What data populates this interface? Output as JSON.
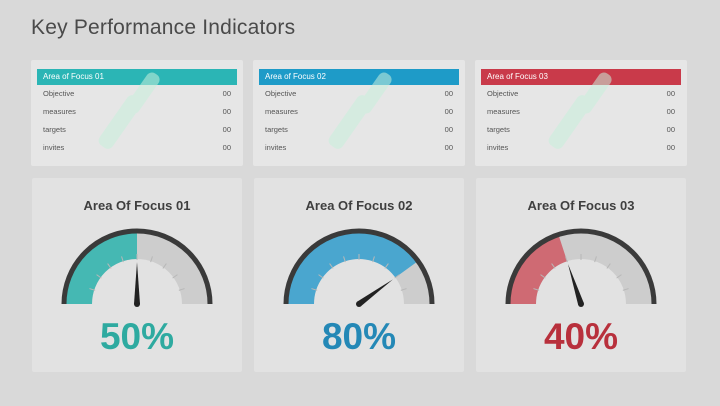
{
  "page": {
    "title": "Key Performance Indicators"
  },
  "tables": [
    {
      "header": "Area of Focus 01",
      "color": "#2bb5b5",
      "rows": [
        {
          "label": "Objective",
          "value": "00"
        },
        {
          "label": "measures",
          "value": "00"
        },
        {
          "label": "targets",
          "value": "00"
        },
        {
          "label": "invites",
          "value": "00"
        }
      ]
    },
    {
      "header": "Area of Focus 02",
      "color": "#1e9bc8",
      "rows": [
        {
          "label": "Objective",
          "value": "00"
        },
        {
          "label": "measures",
          "value": "00"
        },
        {
          "label": "targets",
          "value": "00"
        },
        {
          "label": "invites",
          "value": "00"
        }
      ]
    },
    {
      "header": "Area of Focus 03",
      "color": "#c93a4a",
      "rows": [
        {
          "label": "Objective",
          "value": "00"
        },
        {
          "label": "measures",
          "value": "00"
        },
        {
          "label": "targets",
          "value": "00"
        },
        {
          "label": "invites",
          "value": "00"
        }
      ]
    }
  ],
  "gauges": [
    {
      "title": "Area Of Focus 01",
      "value": 0.5,
      "label": "50%",
      "color": "#45b8b3",
      "text_color": "#2eaaa0"
    },
    {
      "title": "Area Of Focus 02",
      "value": 0.8,
      "label": "80%",
      "color": "#4aa6cf",
      "text_color": "#2488b6"
    },
    {
      "title": "Area Of Focus 03",
      "value": 0.4,
      "label": "40%",
      "color": "#cf6a73",
      "text_color": "#b8303c"
    }
  ]
}
